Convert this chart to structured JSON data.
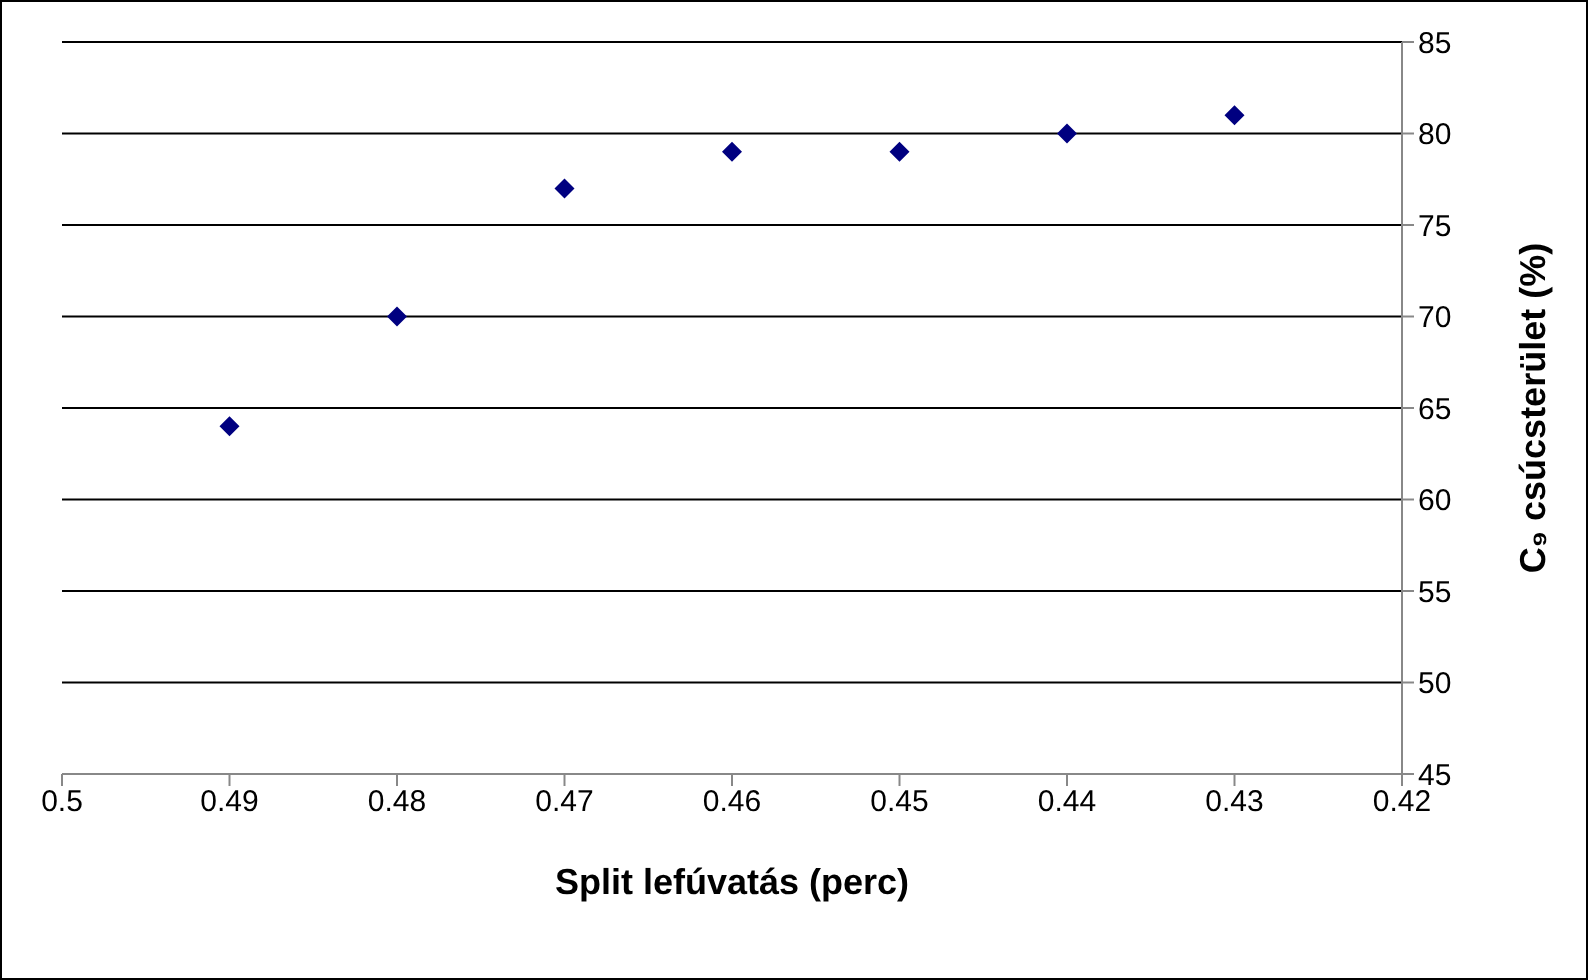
{
  "chart_data": {
    "type": "scatter",
    "xlabel": "Split lefúvatás (perc)",
    "ylabel": "C₉ csúcsterület (%)",
    "x": [
      0.49,
      0.48,
      0.47,
      0.46,
      0.45,
      0.44,
      0.43
    ],
    "series": [
      {
        "color": "#000080",
        "values": [
          64,
          70,
          77,
          79,
          79,
          80,
          81
        ]
      }
    ],
    "xlim": [
      0.5,
      0.42
    ],
    "xticks": [
      0.5,
      0.49,
      0.48,
      0.47,
      0.46,
      0.45,
      0.44,
      0.43,
      0.42
    ],
    "ylim": [
      45,
      85
    ],
    "yticks": [
      45,
      50,
      55,
      60,
      65,
      70,
      75,
      80,
      85
    ],
    "grid": "y",
    "marker": "diamond",
    "legend": false
  }
}
